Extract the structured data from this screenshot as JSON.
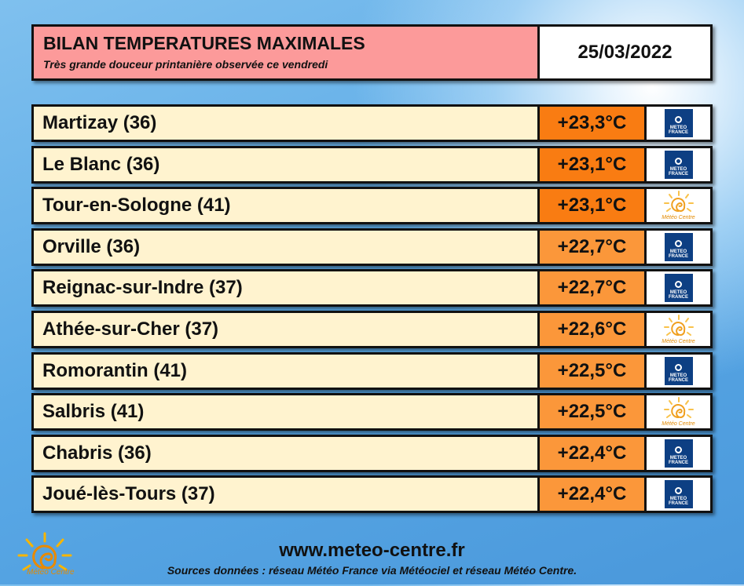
{
  "header": {
    "title": "BILAN TEMPERATURES MAXIMALES",
    "subtitle": "Très grande douceur printanière observée ce vendredi",
    "date": "25/03/2022"
  },
  "rows": [
    {
      "station": "Martizay (36)",
      "temp": "+23,3°C",
      "color": "#f97c12",
      "source": "METEO FRANCE"
    },
    {
      "station": "Le Blanc (36)",
      "temp": "+23,1°C",
      "color": "#f97c12",
      "source": "METEO FRANCE"
    },
    {
      "station": "Tour-en-Sologne (41)",
      "temp": "+23,1°C",
      "color": "#f97c12",
      "source": "Météo Centre"
    },
    {
      "station": "Orville (36)",
      "temp": "+22,7°C",
      "color": "#fb973a",
      "source": "METEO FRANCE"
    },
    {
      "station": "Reignac-sur-Indre (37)",
      "temp": "+22,7°C",
      "color": "#fb973a",
      "source": "METEO FRANCE"
    },
    {
      "station": "Athée-sur-Cher (37)",
      "temp": "+22,6°C",
      "color": "#fb973a",
      "source": "Météo Centre"
    },
    {
      "station": "Romorantin (41)",
      "temp": "+22,5°C",
      "color": "#fb973a",
      "source": "METEO FRANCE"
    },
    {
      "station": "Salbris (41)",
      "temp": "+22,5°C",
      "color": "#fb973a",
      "source": "Météo Centre"
    },
    {
      "station": "Chabris (36)",
      "temp": "+22,4°C",
      "color": "#fb973a",
      "source": "METEO FRANCE"
    },
    {
      "station": "Joué-lès-Tours (37)",
      "temp": "+22,4°C",
      "color": "#fb973a",
      "source": "METEO FRANCE"
    }
  ],
  "footer": {
    "url": "www.meteo-centre.fr",
    "sources": "Sources données : réseau Météo France via Météociel et réseau Météo Centre.",
    "logo": "Météo Centre"
  }
}
